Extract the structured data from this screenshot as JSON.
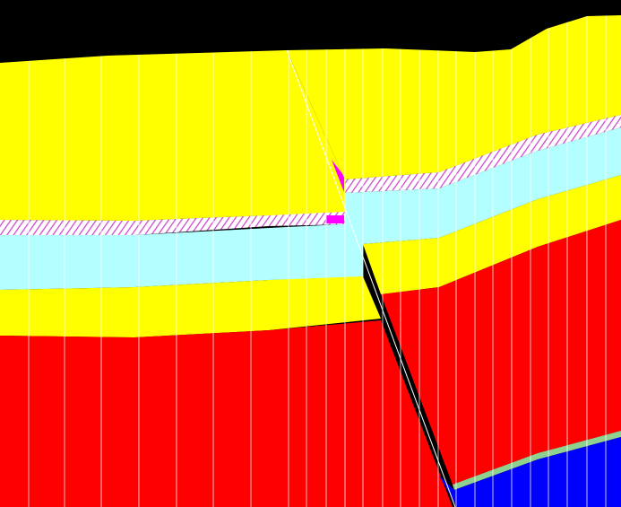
{
  "colors": {
    "background": "#000000",
    "upper_unit": "#ffff00",
    "water_band": "#b3ffff",
    "lower_unit": "#ff0000",
    "basement": "#0000ff",
    "hatch_band": "#cc44cc",
    "hatch_fill": "#ffffff",
    "fault_marker": "#ff00ff",
    "grid_lines": "#ffffff",
    "thin_seam": "#8fd18f"
  },
  "icons": {
    "fault": "fault-line",
    "hatch": "diagonal-hatch-pattern"
  }
}
